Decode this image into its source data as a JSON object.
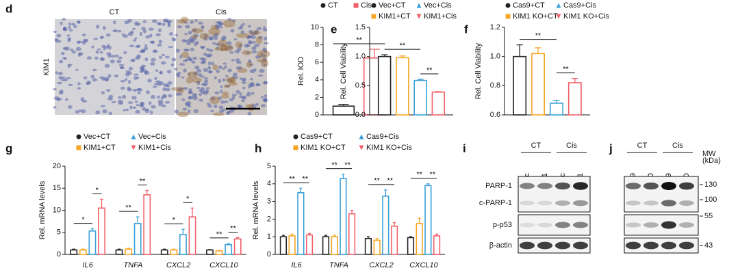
{
  "panel_labels": [
    "d",
    "e",
    "f",
    "g",
    "h",
    "i",
    "j"
  ],
  "micrograph": {
    "row_label": "KIM1",
    "columns": [
      "CT",
      "Cis"
    ]
  },
  "chart_data": [
    {
      "type": "bar",
      "ylabel": "Rel. IOD",
      "categories": [
        null
      ],
      "series": [
        {
          "name": "CT",
          "color": "#222222",
          "values": [
            1.0
          ],
          "errors": [
            0.2
          ]
        },
        {
          "name": "Cis",
          "color": "#f0606a",
          "values": [
            6.5
          ],
          "errors": [
            1.0
          ]
        }
      ],
      "ylim": [
        0,
        10
      ],
      "yticks": [
        0,
        2,
        4,
        6,
        8,
        10
      ],
      "annotations": [
        "**"
      ]
    },
    {
      "type": "bar",
      "ylabel": "Rel. Cell Viability",
      "categories": [
        null
      ],
      "series": [
        {
          "name": "Vec+CT",
          "color": "#222222",
          "values": [
            1.0
          ],
          "errors": [
            0.03
          ]
        },
        {
          "name": "KIM1+CT",
          "color": "#f5a623",
          "values": [
            0.98
          ],
          "errors": [
            0.03
          ]
        },
        {
          "name": "Vec+Cis",
          "color": "#3aa0d8",
          "values": [
            0.59
          ],
          "errors": [
            0.02
          ]
        },
        {
          "name": "KIM1+Cis",
          "color": "#f0606a",
          "values": [
            0.39
          ],
          "errors": [
            0.01
          ]
        }
      ],
      "ylim": [
        0,
        1.5
      ],
      "yticks": [
        {
          "value": 0,
          "label": "0.0"
        },
        0.5,
        {
          "value": 1,
          "label": "1.0"
        },
        1.5
      ],
      "annotations": [
        "**",
        "**"
      ]
    },
    {
      "type": "bar",
      "ylabel": "Rel. Cell Viability",
      "categories": [
        null
      ],
      "series": [
        {
          "name": "Cas9+CT",
          "color": "#222222",
          "values": [
            1.0
          ],
          "errors": [
            0.08
          ]
        },
        {
          "name": "KIM1 KO+CT",
          "color": "#f5a623",
          "values": [
            1.02
          ],
          "errors": [
            0.04
          ]
        },
        {
          "name": "Cas9+Cis",
          "color": "#3aa0d8",
          "values": [
            0.68
          ],
          "errors": [
            0.02
          ]
        },
        {
          "name": "KIM1 KO+Cis",
          "color": "#f0606a",
          "values": [
            0.82
          ],
          "errors": [
            0.03
          ]
        }
      ],
      "ylim": [
        0.6,
        1.2
      ],
      "yticks": [
        0.6,
        0.8,
        {
          "value": 1,
          "label": "1.0"
        },
        1.2
      ],
      "annotations": [
        "**",
        "**"
      ]
    },
    {
      "type": "bar",
      "ylabel": "Rel. mRNA levels",
      "categories": [
        "IL6",
        "TNFA",
        "CXCL2",
        "CXCL10"
      ],
      "series": [
        {
          "name": "Vec+CT",
          "color": "#222222",
          "values": [
            1.0,
            1.0,
            1.0,
            1.0
          ],
          "errors": [
            0.2,
            0.2,
            0.2,
            0.1
          ]
        },
        {
          "name": "KIM1+CT",
          "color": "#f5a623",
          "values": [
            1.0,
            1.2,
            1.0,
            0.8
          ],
          "errors": [
            0.2,
            0.2,
            0.2,
            0.1
          ]
        },
        {
          "name": "Vec+Cis",
          "color": "#3aa0d8",
          "values": [
            5.3,
            7.0,
            4.5,
            2.2
          ],
          "errors": [
            0.5,
            1.5,
            1.2,
            0.3
          ]
        },
        {
          "name": "KIM1+Cis",
          "color": "#f0606a",
          "values": [
            10.5,
            13.5,
            8.5,
            3.5
          ],
          "errors": [
            2.0,
            1.0,
            2.0,
            0.3
          ]
        }
      ],
      "ylim": [
        0,
        20
      ],
      "yticks": [
        0,
        5,
        10,
        15,
        20
      ],
      "annotations": [
        "*",
        "*",
        "**",
        "**",
        "*",
        "*",
        "**",
        "**"
      ]
    },
    {
      "type": "bar",
      "ylabel": "Rel. mRNA levels",
      "categories": [
        "IL6",
        "TNFA",
        "CXCL2",
        "CXCL10"
      ],
      "series": [
        {
          "name": "Cas9+CT",
          "color": "#222222",
          "values": [
            1.0,
            1.0,
            0.9,
            0.95
          ],
          "errors": [
            0.08,
            0.08,
            0.1,
            0.05
          ]
        },
        {
          "name": "KIM1 KO+CT",
          "color": "#f5a623",
          "values": [
            1.05,
            1.0,
            0.8,
            1.75
          ],
          "errors": [
            0.1,
            0.08,
            0.1,
            0.3
          ]
        },
        {
          "name": "Cas9+Cis",
          "color": "#3aa0d8",
          "values": [
            3.5,
            4.3,
            3.3,
            3.9
          ],
          "errors": [
            0.25,
            0.25,
            0.35,
            0.1
          ]
        },
        {
          "name": "KIM1 KO+Cis",
          "color": "#f0606a",
          "values": [
            1.1,
            2.3,
            1.6,
            1.05
          ],
          "errors": [
            0.08,
            0.2,
            0.2,
            0.1
          ]
        }
      ],
      "ylim": [
        0,
        5
      ],
      "yticks": [
        0,
        1,
        2,
        3,
        4,
        5
      ],
      "annotations": [
        "**",
        "**",
        "**",
        "**",
        "**",
        "**",
        "**",
        "**"
      ]
    }
  ],
  "blots": [
    {
      "lane_groups": [
        "CT",
        "Cis"
      ],
      "lanes": [
        "Vec",
        "KIM1",
        "Vec",
        "KIM1"
      ],
      "rows": [
        "PARP-1",
        "c-PARP-1",
        "p-p53",
        "β-actin"
      ]
    },
    {
      "lane_groups": [
        "CT",
        "Cis"
      ],
      "lanes": [
        "Cas9",
        "KIM1 KO",
        "Cas9",
        "KIM1 KO"
      ],
      "mw_title": [
        "MW",
        "(kDa)"
      ],
      "mw": [
        "130",
        "100",
        "55",
        "43"
      ]
    }
  ]
}
